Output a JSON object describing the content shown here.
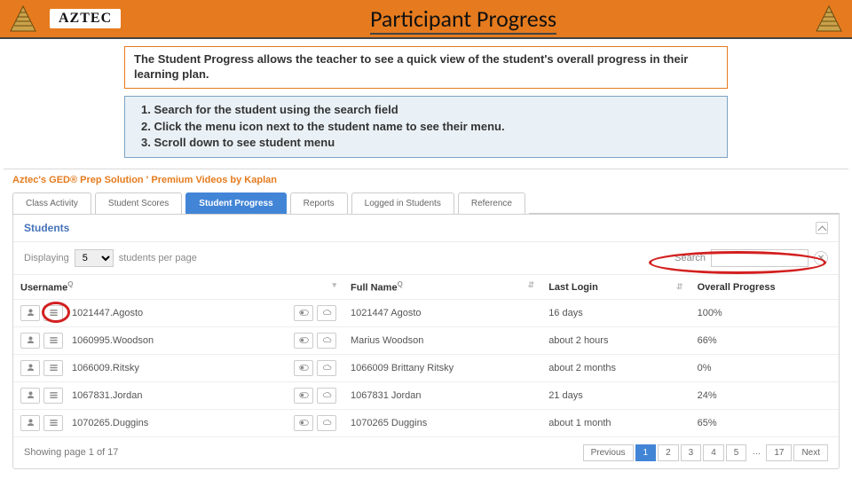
{
  "banner": {
    "brand": "AZTEC",
    "title": "Participant Progress",
    "accent_color": "#e57b1e"
  },
  "infobox": {
    "text": "The Student Progress allows the teacher to see a quick view of the student's overall progress in their learning plan."
  },
  "steps": {
    "items": [
      "Search for the student using the search field",
      "Click the menu icon next to the student name to see their menu.",
      "Scroll down to see student menu"
    ]
  },
  "app": {
    "title": "Aztec's GED® Prep Solution ' Premium Videos by Kaplan",
    "tabs": [
      "Class Activity",
      "Student Scores",
      "Student Progress",
      "Reports",
      "Logged in Students",
      "Reference"
    ],
    "active_tab_index": 2,
    "panel": {
      "heading": "Students",
      "display_label_prefix": "Displaying",
      "per_page_value": "5",
      "display_label_suffix": "students per page",
      "search_label": "Search",
      "search_value": ""
    },
    "columns": {
      "username": "Username",
      "fullname": "Full Name",
      "lastlogin": "Last Login",
      "progress": "Overall Progress"
    },
    "rows": [
      {
        "username": "1021447.Agosto",
        "fullname": "1021447 Agosto",
        "lastlogin": "16 days",
        "progress": "100%"
      },
      {
        "username": "1060995.Woodson",
        "fullname": "Marius Woodson",
        "lastlogin": "about 2 hours",
        "progress": "66%"
      },
      {
        "username": "1066009.Ritsky",
        "fullname": "1066009 Brittany Ritsky",
        "lastlogin": "about 2 months",
        "progress": "0%"
      },
      {
        "username": "1067831.Jordan",
        "fullname": "1067831 Jordan",
        "lastlogin": "21 days",
        "progress": "24%"
      },
      {
        "username": "1070265.Duggins",
        "fullname": "1070265 Duggins",
        "lastlogin": "about 1 month",
        "progress": "65%"
      }
    ],
    "footer_text": "Showing page 1 of 17",
    "pager": {
      "prev": "Previous",
      "pages": [
        "1",
        "2",
        "3",
        "4",
        "5"
      ],
      "last": "17",
      "next": "Next",
      "active_index": 0
    }
  },
  "highlight_color": "#d31f1f"
}
